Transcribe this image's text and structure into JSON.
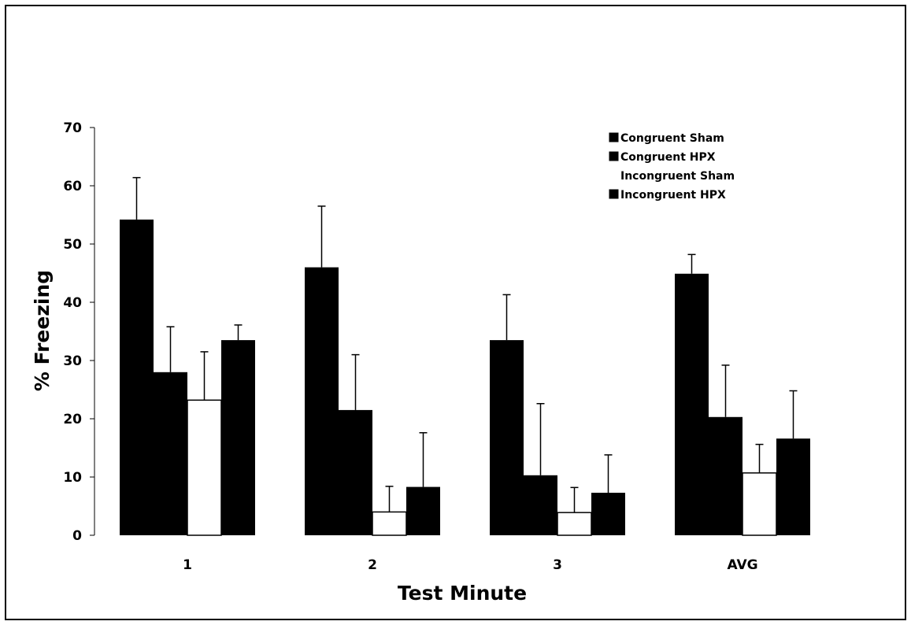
{
  "chart_data": {
    "type": "bar",
    "title": "",
    "xlabel": "Test Minute",
    "ylabel": "% Freezing",
    "categories": [
      "1",
      "2",
      "3",
      "AVG"
    ],
    "ylim": [
      0,
      70
    ],
    "yticks": [
      0,
      10,
      20,
      30,
      40,
      50,
      60,
      70
    ],
    "grid": false,
    "legend_position": "top-right",
    "series": [
      {
        "name": "Congruent Sham",
        "color": "#000000",
        "values": [
          54.2,
          46.0,
          33.5,
          44.9
        ],
        "errors": [
          7.2,
          10.5,
          7.8,
          3.3
        ]
      },
      {
        "name": "Congruent HPX",
        "color": "#000000",
        "values": [
          28.0,
          21.5,
          10.3,
          20.3
        ],
        "errors": [
          7.8,
          9.5,
          12.3,
          8.9
        ]
      },
      {
        "name": "Incongruent Sham",
        "color": "#ffffff",
        "values": [
          23.2,
          4.0,
          3.9,
          10.7
        ],
        "errors": [
          8.3,
          4.4,
          4.3,
          4.9
        ]
      },
      {
        "name": "Incongruent HPX",
        "color": "#000000",
        "values": [
          33.5,
          8.3,
          7.3,
          16.6
        ],
        "errors": [
          2.6,
          9.3,
          6.5,
          8.2
        ]
      }
    ]
  }
}
